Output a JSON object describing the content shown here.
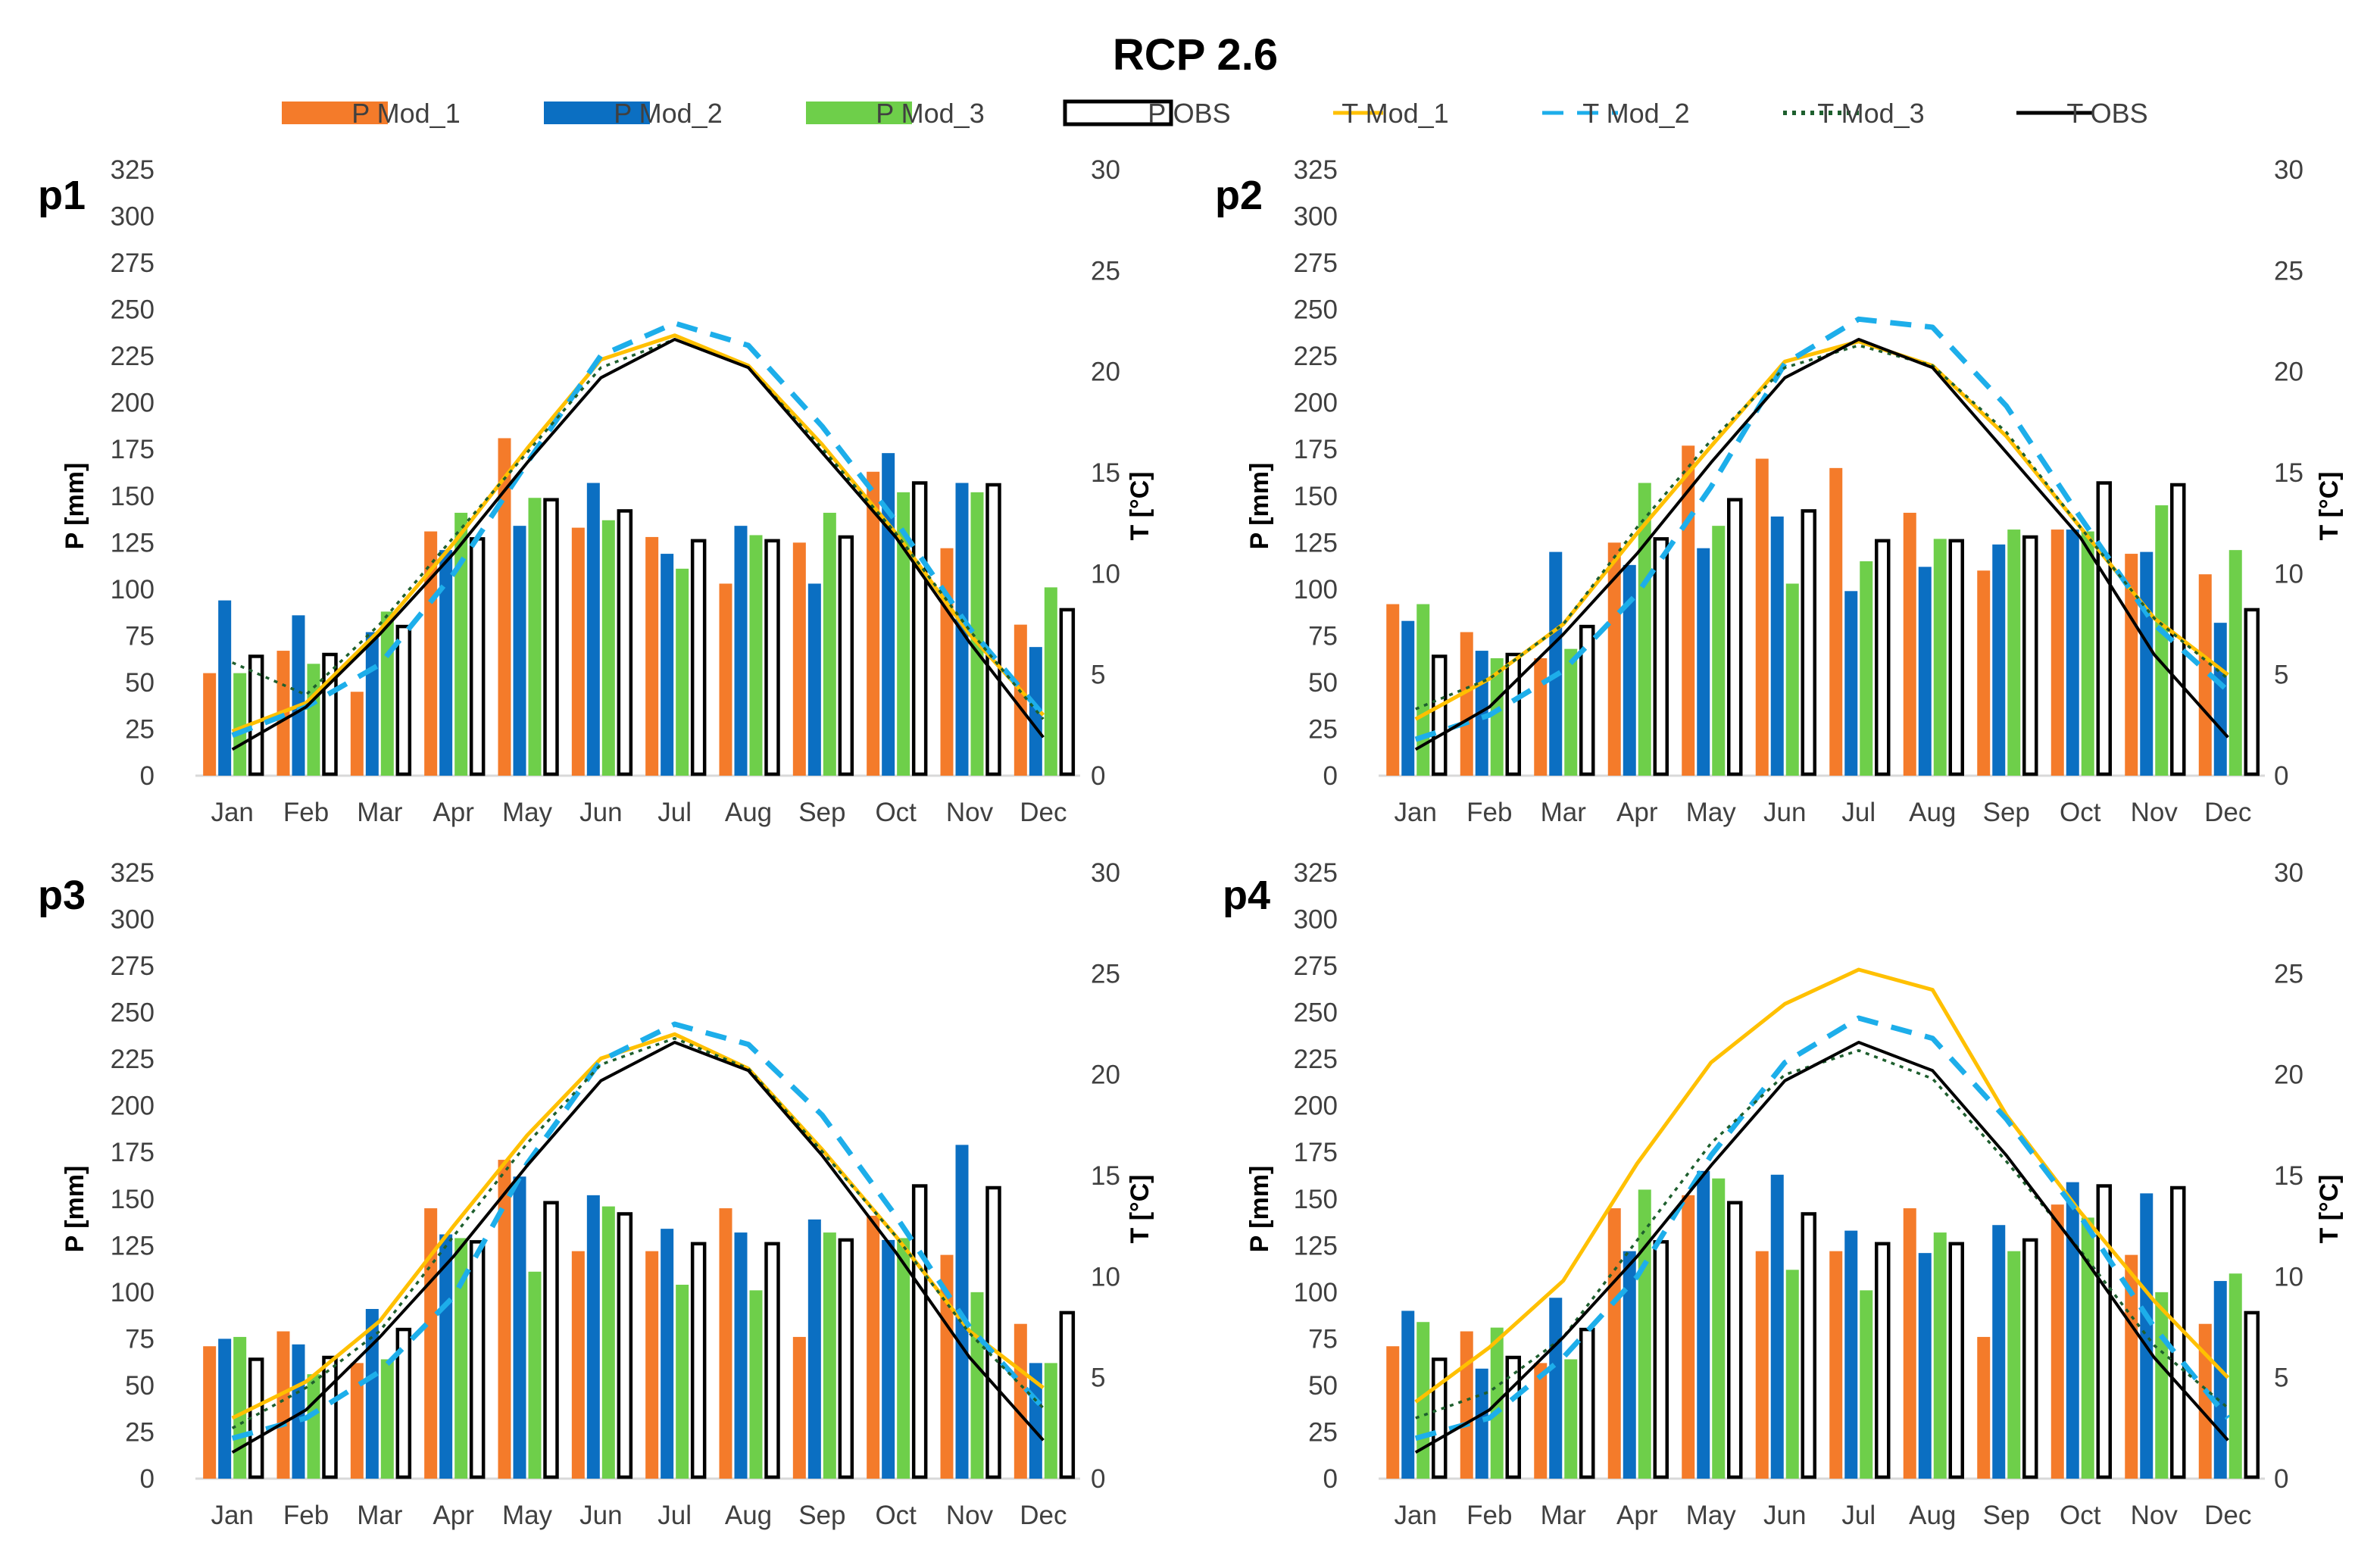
{
  "title": "RCP 2.6",
  "months": [
    "Jan",
    "Feb",
    "Mar",
    "Apr",
    "May",
    "Jun",
    "Jul",
    "Aug",
    "Sep",
    "Oct",
    "Nov",
    "Dec"
  ],
  "series_styles": [
    {
      "key": "p_mod1",
      "name": "P Mod_1",
      "kind": "bar",
      "color": "#F47B2A"
    },
    {
      "key": "p_mod2",
      "name": "P Mod_2",
      "kind": "bar",
      "color": "#0B6FC2"
    },
    {
      "key": "p_mod3",
      "name": "P Mod_3",
      "kind": "bar",
      "color": "#6ECF4A"
    },
    {
      "key": "p_obs",
      "name": "P OBS",
      "kind": "bar-outline",
      "color": "#000000"
    },
    {
      "key": "t_mod1",
      "name": "T Mod_1",
      "kind": "line",
      "color": "#FFC000",
      "dash": "solid"
    },
    {
      "key": "t_mod2",
      "name": "T Mod_2",
      "kind": "line",
      "color": "#1DAEEA",
      "dash": "dashed"
    },
    {
      "key": "t_mod3",
      "name": "T Mod_3",
      "kind": "line",
      "color": "#1E5F2E",
      "dash": "dotted"
    },
    {
      "key": "t_obs",
      "name": "T OBS",
      "kind": "line",
      "color": "#000000",
      "dash": "solid"
    }
  ],
  "chart_data": [
    {
      "type": "bar+line",
      "panel": "p1",
      "title": "RCP 2.6",
      "categories": [
        "Jan",
        "Feb",
        "Mar",
        "Apr",
        "May",
        "Jun",
        "Jul",
        "Aug",
        "Sep",
        "Oct",
        "Nov",
        "Dec"
      ],
      "ylabel_left": "P [mm]",
      "ylabel_right": "T [°C]",
      "ylim_left": [
        0,
        325
      ],
      "ylim_right": [
        0,
        30
      ],
      "yticks_left": [
        0,
        25,
        50,
        75,
        100,
        125,
        150,
        175,
        200,
        225,
        250,
        275,
        300,
        325
      ],
      "yticks_right": [
        0,
        5,
        10,
        15,
        20,
        25,
        30
      ],
      "series": [
        {
          "name": "P Mod_1",
          "axis": "left",
          "values": [
            55,
            67,
            45,
            131,
            181,
            133,
            128,
            103,
            125,
            163,
            122,
            81
          ]
        },
        {
          "name": "P Mod_2",
          "axis": "left",
          "values": [
            94,
            86,
            77,
            121,
            134,
            157,
            119,
            134,
            103,
            173,
            157,
            69
          ]
        },
        {
          "name": "P Mod_3",
          "axis": "left",
          "values": [
            55,
            60,
            88,
            141,
            149,
            137,
            111,
            129,
            141,
            152,
            152,
            101
          ]
        },
        {
          "name": "P OBS",
          "axis": "left",
          "values": [
            64,
            65,
            80,
            127,
            148,
            142,
            126,
            126,
            128,
            157,
            156,
            89
          ]
        },
        {
          "name": "T Mod_1",
          "axis": "right",
          "values": [
            2.2,
            3.6,
            7.2,
            11.5,
            16.2,
            20.6,
            21.8,
            20.3,
            16.4,
            12.0,
            7.0,
            3.0
          ]
        },
        {
          "name": "T Mod_2",
          "axis": "right",
          "values": [
            2.0,
            3.4,
            5.5,
            10.0,
            15.5,
            20.8,
            22.4,
            21.3,
            17.3,
            12.6,
            7.3,
            3.0
          ]
        },
        {
          "name": "T Mod_3",
          "axis": "right",
          "values": [
            5.6,
            4.0,
            7.5,
            11.8,
            16.0,
            20.2,
            21.6,
            20.2,
            16.2,
            12.0,
            7.2,
            2.8
          ]
        },
        {
          "name": "T OBS",
          "axis": "right",
          "values": [
            1.3,
            3.4,
            7.0,
            11.0,
            15.5,
            19.7,
            21.6,
            20.2,
            16.0,
            11.8,
            6.6,
            1.9
          ]
        }
      ]
    },
    {
      "type": "bar+line",
      "panel": "p2",
      "title": "RCP 2.6",
      "categories": [
        "Jan",
        "Feb",
        "Mar",
        "Apr",
        "May",
        "Jun",
        "Jul",
        "Aug",
        "Sep",
        "Oct",
        "Nov",
        "Dec"
      ],
      "ylabel_left": "P [mm]",
      "ylabel_right": "T [°C]",
      "ylim_left": [
        0,
        325
      ],
      "ylim_right": [
        0,
        30
      ],
      "yticks_left": [
        0,
        25,
        50,
        75,
        100,
        125,
        150,
        175,
        200,
        225,
        250,
        275,
        300,
        325
      ],
      "yticks_right": [
        0,
        5,
        10,
        15,
        20,
        25,
        30
      ],
      "series": [
        {
          "name": "P Mod_1",
          "axis": "left",
          "values": [
            92,
            77,
            63,
            125,
            177,
            170,
            165,
            141,
            110,
            132,
            119,
            108
          ]
        },
        {
          "name": "P Mod_2",
          "axis": "left",
          "values": [
            83,
            67,
            120,
            113,
            122,
            139,
            99,
            112,
            124,
            132,
            120,
            82
          ]
        },
        {
          "name": "P Mod_3",
          "axis": "left",
          "values": [
            92,
            63,
            68,
            157,
            134,
            103,
            115,
            127,
            132,
            131,
            145,
            121
          ]
        },
        {
          "name": "P OBS",
          "axis": "left",
          "values": [
            64,
            65,
            80,
            127,
            148,
            142,
            126,
            126,
            128,
            157,
            156,
            89
          ]
        },
        {
          "name": "T Mod_1",
          "axis": "right",
          "values": [
            2.8,
            4.8,
            7.5,
            12.0,
            16.3,
            20.5,
            21.5,
            20.3,
            16.8,
            12.3,
            7.8,
            5.0
          ]
        },
        {
          "name": "T Mod_2",
          "axis": "right",
          "values": [
            1.8,
            3.0,
            5.2,
            9.0,
            14.3,
            20.4,
            22.6,
            22.2,
            18.3,
            12.8,
            7.5,
            4.2
          ]
        },
        {
          "name": "T Mod_3",
          "axis": "right",
          "values": [
            3.3,
            4.8,
            7.5,
            12.3,
            16.6,
            20.2,
            21.3,
            20.3,
            17.0,
            12.3,
            7.8,
            4.8
          ]
        },
        {
          "name": "T OBS",
          "axis": "right",
          "values": [
            1.3,
            3.4,
            7.0,
            11.0,
            15.5,
            19.7,
            21.6,
            20.2,
            16.0,
            11.8,
            6.0,
            1.9
          ]
        }
      ]
    },
    {
      "type": "bar+line",
      "panel": "p3",
      "title": "RCP 2.6",
      "categories": [
        "Jan",
        "Feb",
        "Mar",
        "Apr",
        "May",
        "Jun",
        "Jul",
        "Aug",
        "Sep",
        "Oct",
        "Nov",
        "Dec"
      ],
      "ylabel_left": "P [mm]",
      "ylabel_right": "T [°C]",
      "ylim_left": [
        0,
        325
      ],
      "ylim_right": [
        0,
        30
      ],
      "yticks_left": [
        0,
        25,
        50,
        75,
        100,
        125,
        150,
        175,
        200,
        225,
        250,
        275,
        300,
        325
      ],
      "yticks_right": [
        0,
        5,
        10,
        15,
        20,
        25,
        30
      ],
      "series": [
        {
          "name": "P Mod_1",
          "axis": "left",
          "values": [
            71,
            79,
            62,
            145,
            171,
            122,
            122,
            145,
            76,
            141,
            120,
            83
          ]
        },
        {
          "name": "P Mod_2",
          "axis": "left",
          "values": [
            75,
            72,
            91,
            131,
            162,
            152,
            134,
            132,
            139,
            128,
            179,
            62
          ]
        },
        {
          "name": "P Mod_3",
          "axis": "left",
          "values": [
            76,
            56,
            64,
            129,
            111,
            146,
            104,
            101,
            132,
            129,
            100,
            62
          ]
        },
        {
          "name": "P OBS",
          "axis": "left",
          "values": [
            64,
            65,
            80,
            127,
            148,
            142,
            126,
            126,
            128,
            157,
            156,
            89
          ]
        },
        {
          "name": "T Mod_1",
          "axis": "right",
          "values": [
            3.0,
            4.8,
            7.8,
            12.5,
            17.0,
            20.8,
            22.0,
            20.3,
            16.3,
            12.0,
            7.3,
            4.5
          ]
        },
        {
          "name": "T Mod_2",
          "axis": "right",
          "values": [
            2.0,
            3.0,
            5.3,
            9.0,
            15.6,
            20.7,
            22.5,
            21.5,
            18.0,
            13.0,
            7.5,
            3.5
          ]
        },
        {
          "name": "T Mod_3",
          "axis": "right",
          "values": [
            2.5,
            4.5,
            7.3,
            12.0,
            16.6,
            20.5,
            21.8,
            20.3,
            16.2,
            12.0,
            7.2,
            3.5
          ]
        },
        {
          "name": "T OBS",
          "axis": "right",
          "values": [
            1.3,
            3.4,
            7.0,
            11.0,
            15.5,
            19.7,
            21.6,
            20.2,
            16.0,
            11.2,
            6.0,
            1.9
          ]
        }
      ]
    },
    {
      "type": "bar+line",
      "panel": "p4",
      "title": "RCP 2.6",
      "categories": [
        "Jan",
        "Feb",
        "Mar",
        "Apr",
        "May",
        "Jun",
        "Jul",
        "Aug",
        "Sep",
        "Oct",
        "Nov",
        "Dec"
      ],
      "ylabel_left": "P [mm]",
      "ylabel_right": "T [°C]",
      "ylim_left": [
        0,
        325
      ],
      "ylim_right": [
        0,
        30
      ],
      "yticks_left": [
        0,
        25,
        50,
        75,
        100,
        125,
        150,
        175,
        200,
        225,
        250,
        275,
        300,
        325
      ],
      "yticks_right": [
        0,
        5,
        10,
        15,
        20,
        25,
        30
      ],
      "series": [
        {
          "name": "P Mod_1",
          "axis": "left",
          "values": [
            71,
            79,
            62,
            145,
            152,
            122,
            122,
            145,
            76,
            147,
            120,
            83
          ]
        },
        {
          "name": "P Mod_2",
          "axis": "left",
          "values": [
            90,
            59,
            97,
            122,
            165,
            163,
            133,
            121,
            136,
            159,
            153,
            106
          ]
        },
        {
          "name": "P Mod_3",
          "axis": "left",
          "values": [
            84,
            81,
            64,
            155,
            161,
            112,
            101,
            132,
            122,
            140,
            100,
            110
          ]
        },
        {
          "name": "P OBS",
          "axis": "left",
          "values": [
            64,
            65,
            80,
            127,
            148,
            142,
            126,
            126,
            128,
            157,
            156,
            89
          ]
        },
        {
          "name": "T Mod_1",
          "axis": "right",
          "values": [
            3.8,
            6.5,
            9.8,
            15.6,
            20.6,
            23.5,
            25.2,
            24.2,
            18.0,
            13.2,
            8.8,
            5.0
          ]
        },
        {
          "name": "T Mod_2",
          "axis": "right",
          "values": [
            2.0,
            3.0,
            6.0,
            10.0,
            16.0,
            20.6,
            22.8,
            21.8,
            17.8,
            13.0,
            7.5,
            3.0
          ]
        },
        {
          "name": "T Mod_3",
          "axis": "right",
          "values": [
            3.0,
            4.3,
            7.0,
            11.8,
            16.6,
            20.0,
            21.2,
            19.8,
            15.7,
            11.3,
            6.6,
            3.5
          ]
        },
        {
          "name": "T OBS",
          "axis": "right",
          "values": [
            1.3,
            3.4,
            7.0,
            11.0,
            15.5,
            19.7,
            21.6,
            20.2,
            16.0,
            11.2,
            6.0,
            1.9
          ]
        }
      ]
    }
  ]
}
